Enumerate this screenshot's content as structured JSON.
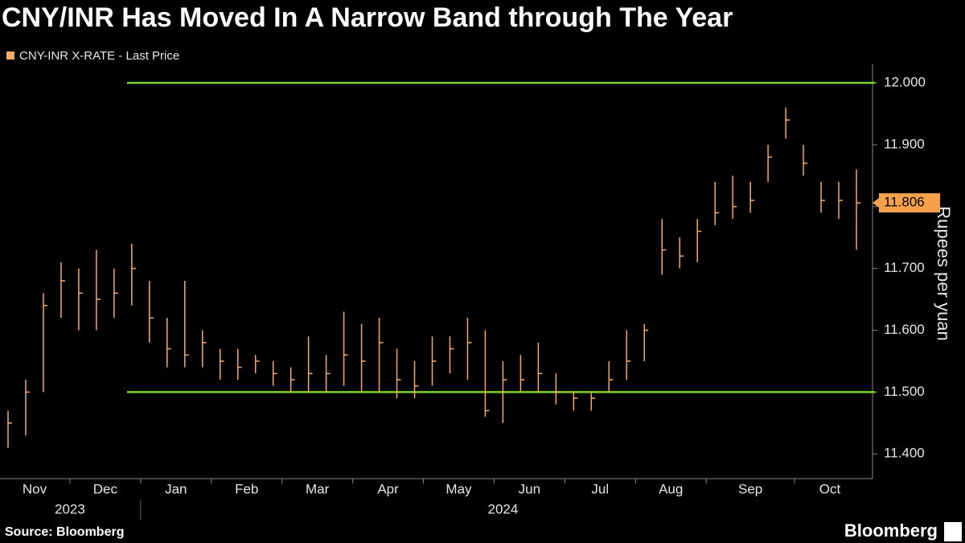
{
  "chart_data": {
    "type": "hlc",
    "title": "CNY/INR Has Moved In A Narrow Band through The Year",
    "legend": "CNY-INR X-RATE - Last Price",
    "y_label": "Rupees per yuan",
    "source": "Source: Bloomberg",
    "brand": "Bloomberg",
    "color": "#f5a96a",
    "line_color": "#7ed321",
    "tag_color": "#f5a04a",
    "reference_lines": [
      12.0,
      11.5
    ],
    "ylim": [
      11.36,
      12.03
    ],
    "yticks": [
      {
        "value": 11.4,
        "label": "11.400"
      },
      {
        "value": 11.5,
        "label": "11.500"
      },
      {
        "value": 11.6,
        "label": "11.600"
      },
      {
        "value": 11.7,
        "label": "11.700"
      },
      {
        "value": 11.8,
        "label": "11.800"
      },
      {
        "value": 11.9,
        "label": "11.900"
      },
      {
        "value": 12.0,
        "label": "12.000"
      }
    ],
    "months": [
      "Nov",
      "Dec",
      "Jan",
      "Feb",
      "Mar",
      "Apr",
      "May",
      "Jun",
      "Jul",
      "Aug",
      "Sep",
      "Oct"
    ],
    "month_keys": [
      "2023-11",
      "2023-12",
      "2024-01",
      "2024-02",
      "2024-03",
      "2024-04",
      "2024-05",
      "2024-06",
      "2024-07",
      "2024-08",
      "2024-09",
      "2024-10"
    ],
    "years": [
      "2023",
      "2024"
    ],
    "x": [
      "2023-11",
      "2023-11",
      "2023-11",
      "2023-11",
      "2023-12",
      "2023-12",
      "2023-12",
      "2023-12",
      "2024-01",
      "2024-01",
      "2024-01",
      "2024-01",
      "2024-02",
      "2024-02",
      "2024-02",
      "2024-02",
      "2024-03",
      "2024-03",
      "2024-03",
      "2024-03",
      "2024-04",
      "2024-04",
      "2024-04",
      "2024-04",
      "2024-05",
      "2024-05",
      "2024-05",
      "2024-05",
      "2024-06",
      "2024-06",
      "2024-06",
      "2024-06",
      "2024-07",
      "2024-07",
      "2024-07",
      "2024-07",
      "2024-08",
      "2024-08",
      "2024-08",
      "2024-08",
      "2024-09",
      "2024-09",
      "2024-09",
      "2024-09",
      "2024-09",
      "2024-10",
      "2024-10",
      "2024-10",
      "2024-10"
    ],
    "high": [
      11.47,
      11.52,
      11.66,
      11.71,
      11.7,
      11.73,
      11.7,
      11.74,
      11.68,
      11.62,
      11.68,
      11.6,
      11.57,
      11.57,
      11.56,
      11.55,
      11.54,
      11.59,
      11.56,
      11.63,
      11.61,
      11.62,
      11.57,
      11.55,
      11.59,
      11.59,
      11.62,
      11.6,
      11.55,
      11.56,
      11.58,
      11.53,
      11.5,
      11.5,
      11.55,
      11.6,
      11.61,
      11.78,
      11.75,
      11.78,
      11.84,
      11.85,
      11.84,
      11.9,
      11.96,
      11.9,
      11.84,
      11.84,
      11.86
    ],
    "low": [
      11.41,
      11.43,
      11.5,
      11.62,
      11.6,
      11.6,
      11.62,
      11.64,
      11.58,
      11.54,
      11.54,
      11.54,
      11.52,
      11.52,
      11.53,
      11.51,
      11.5,
      11.5,
      11.5,
      11.51,
      11.5,
      11.5,
      11.49,
      11.49,
      11.51,
      11.53,
      11.52,
      11.46,
      11.45,
      11.5,
      11.5,
      11.48,
      11.47,
      11.47,
      11.5,
      11.52,
      11.55,
      11.69,
      11.7,
      11.71,
      11.77,
      11.78,
      11.79,
      11.84,
      11.91,
      11.85,
      11.79,
      11.78,
      11.73
    ],
    "close": [
      11.45,
      11.5,
      11.64,
      11.68,
      11.66,
      11.65,
      11.66,
      11.7,
      11.62,
      11.57,
      11.56,
      11.58,
      11.55,
      11.54,
      11.55,
      11.53,
      11.52,
      11.53,
      11.53,
      11.56,
      11.55,
      11.58,
      11.52,
      11.51,
      11.55,
      11.57,
      11.58,
      11.47,
      11.52,
      11.52,
      11.53,
      11.5,
      11.49,
      11.49,
      11.52,
      11.55,
      11.6,
      11.73,
      11.72,
      11.76,
      11.79,
      11.8,
      11.81,
      11.88,
      11.94,
      11.87,
      11.81,
      11.81,
      11.806
    ]
  }
}
